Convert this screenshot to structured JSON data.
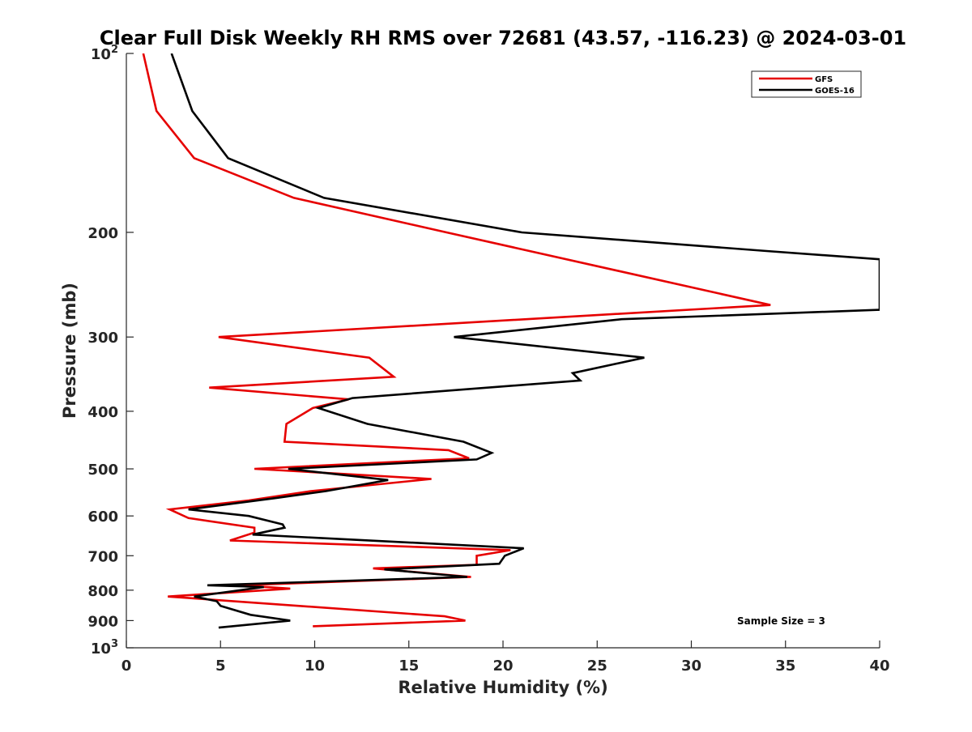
{
  "chart_data": {
    "type": "line",
    "title": "Clear Full Disk Weekly RH RMS over 72681 (43.57, -116.23) @ 2024-03-01",
    "xlabel": "Relative Humidity (%)",
    "ylabel": "Pressure (mb)",
    "xlim": [
      0,
      40
    ],
    "ylim": [
      100,
      1000
    ],
    "y_scale": "log",
    "y_reversed": true,
    "grid": false,
    "legend_position": "top-right",
    "x_ticks": [
      "0",
      "5",
      "10",
      "15",
      "20",
      "25",
      "30",
      "35",
      "40"
    ],
    "y_ticks": [
      {
        "value": 100,
        "base": "10",
        "exp": "2"
      },
      {
        "value": 200,
        "label": "200"
      },
      {
        "value": 300,
        "label": "300"
      },
      {
        "value": 400,
        "label": "400"
      },
      {
        "value": 500,
        "label": "500"
      },
      {
        "value": 600,
        "label": "600"
      },
      {
        "value": 700,
        "label": "700"
      },
      {
        "value": 800,
        "label": "800"
      },
      {
        "value": 900,
        "label": "900"
      },
      {
        "value": 1000,
        "base": "10",
        "exp": "3"
      }
    ],
    "annotation": "Sample Size = 3",
    "series": [
      {
        "name": "GFS",
        "color": "#e60000",
        "points": [
          [
            0.9,
            100
          ],
          [
            1.6,
            125
          ],
          [
            3.6,
            150
          ],
          [
            8.9,
            175
          ],
          [
            17.0,
            200
          ],
          [
            34.2,
            265
          ],
          [
            4.9,
            300
          ],
          [
            12.9,
            325
          ],
          [
            14.2,
            350
          ],
          [
            4.4,
            365
          ],
          [
            11.8,
            382
          ],
          [
            9.9,
            395
          ],
          [
            8.5,
            420
          ],
          [
            8.4,
            450
          ],
          [
            17.1,
            465
          ],
          [
            18.2,
            480
          ],
          [
            6.8,
            500
          ],
          [
            16.2,
            520
          ],
          [
            9.8,
            545
          ],
          [
            6.5,
            565
          ],
          [
            2.3,
            585
          ],
          [
            3.3,
            605
          ],
          [
            6.8,
            628
          ],
          [
            6.8,
            640
          ],
          [
            5.5,
            660
          ],
          [
            20.4,
            685
          ],
          [
            18.6,
            700
          ],
          [
            18.6,
            725
          ],
          [
            13.1,
            735
          ],
          [
            18.3,
            760
          ],
          [
            6.0,
            785
          ],
          [
            8.7,
            795
          ],
          [
            2.2,
            820
          ],
          [
            16.9,
            885
          ],
          [
            18.0,
            900
          ],
          [
            9.9,
            920
          ]
        ]
      },
      {
        "name": "GOES-16",
        "color": "#000000",
        "points": [
          [
            2.4,
            100
          ],
          [
            3.5,
            125
          ],
          [
            5.4,
            150
          ],
          [
            10.5,
            175
          ],
          [
            21.0,
            200
          ],
          [
            34.0,
            215
          ],
          [
            40.0,
            222
          ],
          [
            40.0,
            270
          ],
          [
            26.3,
            280
          ],
          [
            17.4,
            300
          ],
          [
            27.5,
            325
          ],
          [
            23.7,
            345
          ],
          [
            24.1,
            355
          ],
          [
            12.0,
            380
          ],
          [
            10.2,
            395
          ],
          [
            12.8,
            420
          ],
          [
            17.9,
            450
          ],
          [
            19.4,
            470
          ],
          [
            18.6,
            482
          ],
          [
            8.6,
            500
          ],
          [
            13.9,
            522
          ],
          [
            10.6,
            545
          ],
          [
            7.9,
            560
          ],
          [
            3.3,
            585
          ],
          [
            6.5,
            600
          ],
          [
            8.3,
            620
          ],
          [
            8.4,
            628
          ],
          [
            6.7,
            645
          ],
          [
            21.1,
            680
          ],
          [
            20.1,
            700
          ],
          [
            19.8,
            722
          ],
          [
            13.7,
            738
          ],
          [
            18.1,
            760
          ],
          [
            4.3,
            785
          ],
          [
            7.3,
            790
          ],
          [
            3.6,
            820
          ],
          [
            4.8,
            835
          ],
          [
            5.0,
            850
          ],
          [
            6.6,
            880
          ],
          [
            8.7,
            900
          ],
          [
            4.9,
            925
          ]
        ]
      }
    ]
  }
}
